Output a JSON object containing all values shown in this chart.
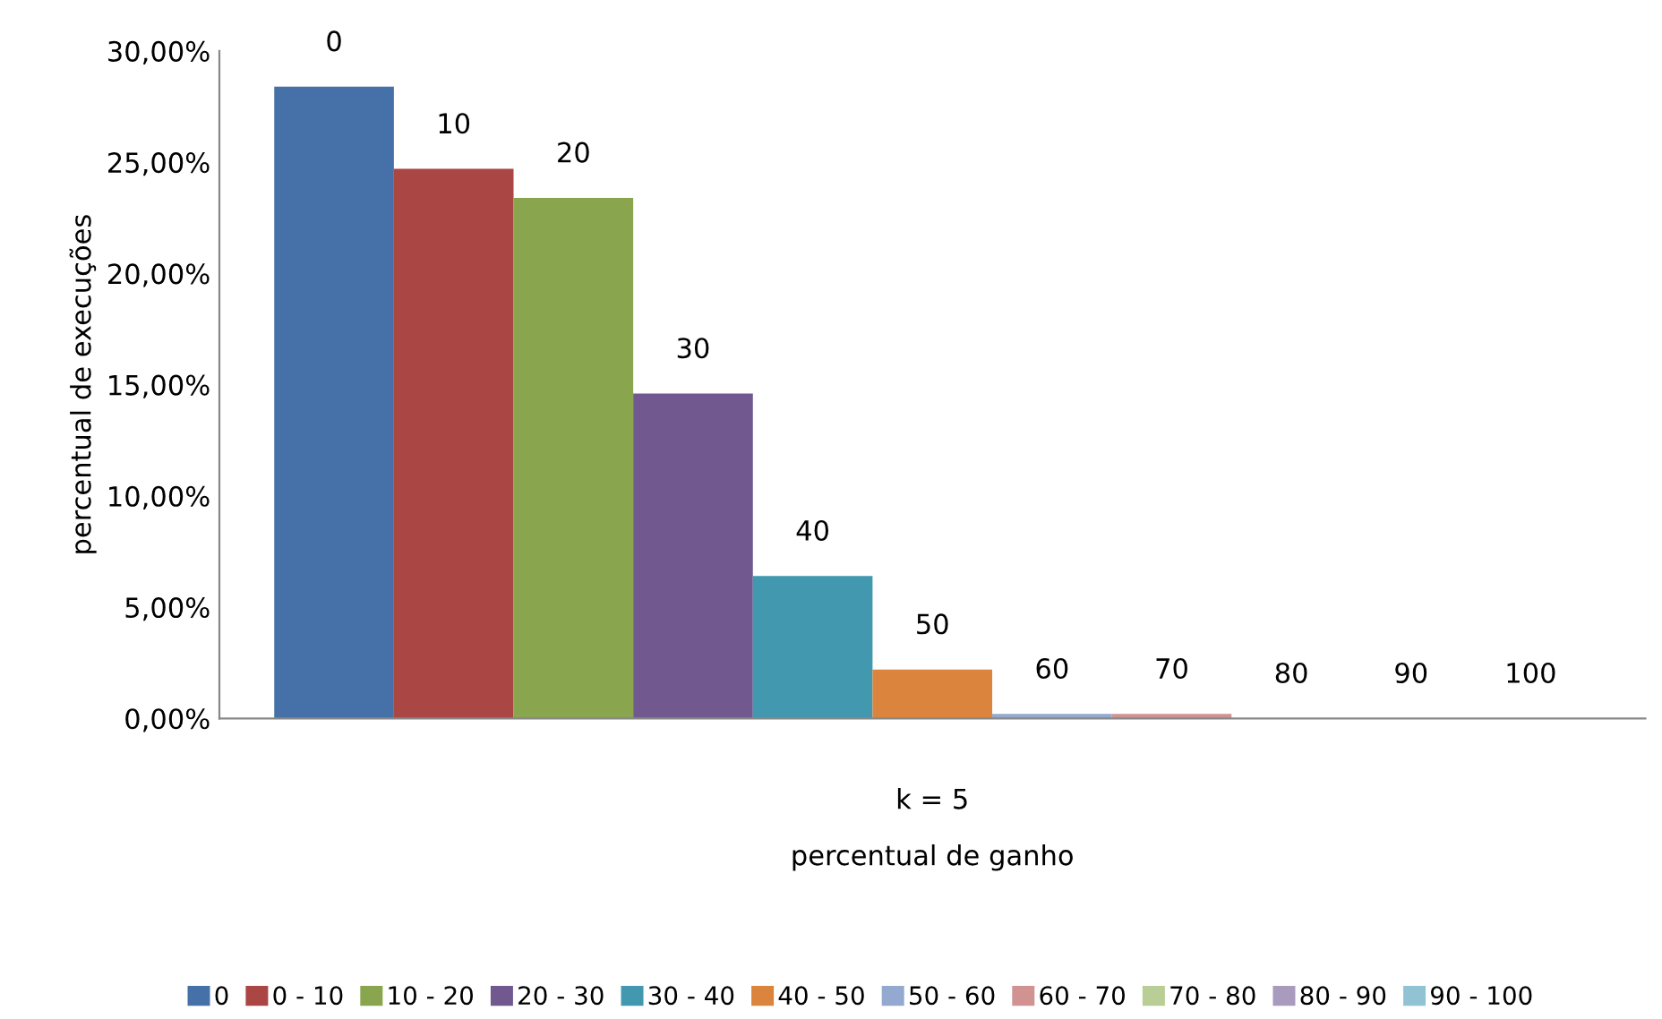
{
  "chart_data": {
    "type": "bar",
    "xlabel": "percentual de ganho",
    "ylabel": "percentual de execuções",
    "categories": [
      "k = 5"
    ],
    "series": [
      {
        "name": "0",
        "color": "#4571a8",
        "values": [
          28.4
        ]
      },
      {
        "name": "0 - 10",
        "color": "#aa4643",
        "values": [
          24.7
        ]
      },
      {
        "name": "10 - 20",
        "color": "#89a54e",
        "values": [
          23.4
        ]
      },
      {
        "name": "20 - 30",
        "color": "#71588f",
        "values": [
          14.6
        ]
      },
      {
        "name": "30 - 40",
        "color": "#4198af",
        "values": [
          6.4
        ]
      },
      {
        "name": "40 - 50",
        "color": "#db843d",
        "values": [
          2.2
        ]
      },
      {
        "name": "50 - 60",
        "color": "#93a9cf",
        "values": [
          0.2
        ]
      },
      {
        "name": "60 - 70",
        "color": "#d19392",
        "values": [
          0.2
        ]
      },
      {
        "name": "70 - 80",
        "color": "#b9cd96",
        "values": [
          0
        ]
      },
      {
        "name": "80 - 90",
        "color": "#a99bbd",
        "values": [
          0
        ]
      },
      {
        "name": "90 - 100",
        "color": "#91c3d5",
        "values": [
          0
        ]
      }
    ],
    "annotations": [
      "0",
      "10",
      "20",
      "30",
      "40",
      "50",
      "60",
      "70",
      "80",
      "90",
      "100"
    ],
    "ylim": [
      0,
      30
    ],
    "yticks": [
      {
        "value": 0,
        "label": "0,00%"
      },
      {
        "value": 5,
        "label": "5,00%"
      },
      {
        "value": 10,
        "label": "10,00%"
      },
      {
        "value": 15,
        "label": "15,00%"
      },
      {
        "value": 20,
        "label": "20,00%"
      },
      {
        "value": 25,
        "label": "25,00%"
      },
      {
        "value": 30,
        "label": "30,00%"
      }
    ],
    "grid": false,
    "legend": "bottom"
  }
}
